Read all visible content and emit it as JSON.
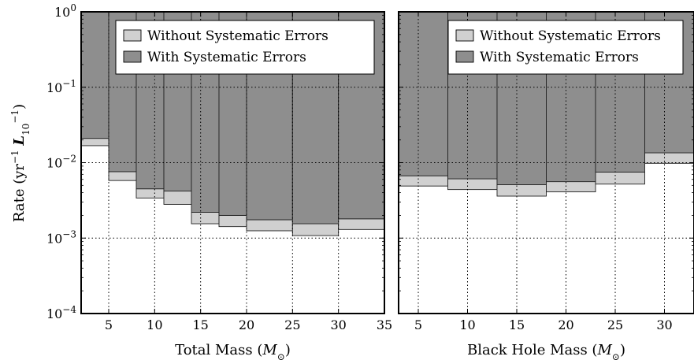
{
  "chart_data": [
    {
      "type": "bar",
      "subtype": "step-histogram",
      "yscale": "log",
      "xlim": [
        2,
        35
      ],
      "ylim": [
        0.0001,
        1
      ],
      "xlabel": "Total Mass (M⊙)",
      "ylabel": "Rate (yr⁻¹ L₁₀⁻¹)",
      "xticks": [
        5,
        10,
        15,
        20,
        25,
        30,
        35
      ],
      "yticks": [
        0.0001,
        0.001,
        0.01,
        0.1,
        1
      ],
      "ytick_labels": [
        {
          "base": "10",
          "exp": "−4"
        },
        {
          "base": "10",
          "exp": "−3"
        },
        {
          "base": "10",
          "exp": "−2"
        },
        {
          "base": "10",
          "exp": "−1"
        },
        {
          "base": "10",
          "exp": "0"
        }
      ],
      "grid": true,
      "legend_position": "top-right",
      "bin_edges": [
        2,
        5,
        8,
        11,
        14,
        17,
        20,
        25,
        30,
        35
      ],
      "series": [
        {
          "name": "Without Systematic Errors",
          "color": "#d0d0d0",
          "lower": [
            0.0168,
            0.0058,
            0.0034,
            0.0028,
            0.00155,
            0.00142,
            0.00125,
            0.00108,
            0.0013
          ],
          "upper": [
            0.021,
            0.0076,
            0.0045,
            0.0042,
            0.0022,
            0.002,
            0.00175,
            0.00155,
            0.0018
          ]
        },
        {
          "name": "With Systematic Errors",
          "color": "#8e8e8e",
          "lower": [
            0.021,
            0.0076,
            0.0045,
            0.0042,
            0.0022,
            0.002,
            0.00175,
            0.00155,
            0.0018
          ],
          "upper": [
            1,
            1,
            1,
            1,
            1,
            1,
            1,
            1,
            1
          ]
        }
      ]
    },
    {
      "type": "bar",
      "subtype": "step-histogram",
      "yscale": "log",
      "xlim": [
        3,
        33
      ],
      "ylim": [
        0.0001,
        1
      ],
      "xlabel": "Black Hole Mass (M⊙)",
      "ylabel": "",
      "xticks": [
        5,
        10,
        15,
        20,
        25,
        30
      ],
      "grid": true,
      "legend_position": "top-right",
      "bin_edges": [
        3,
        8,
        13,
        18,
        23,
        28,
        33
      ],
      "series": [
        {
          "name": "Without Systematic Errors",
          "color": "#d0d0d0",
          "lower": [
            0.0049,
            0.0044,
            0.0036,
            0.0041,
            0.0052,
            0.0098
          ],
          "upper": [
            0.0067,
            0.0061,
            0.0051,
            0.0056,
            0.0075,
            0.0135
          ]
        },
        {
          "name": "With Systematic Errors",
          "color": "#8e8e8e",
          "lower": [
            0.0067,
            0.0061,
            0.0051,
            0.0056,
            0.0075,
            0.0135
          ],
          "upper": [
            1,
            1,
            1,
            1,
            1,
            1
          ]
        }
      ]
    }
  ]
}
